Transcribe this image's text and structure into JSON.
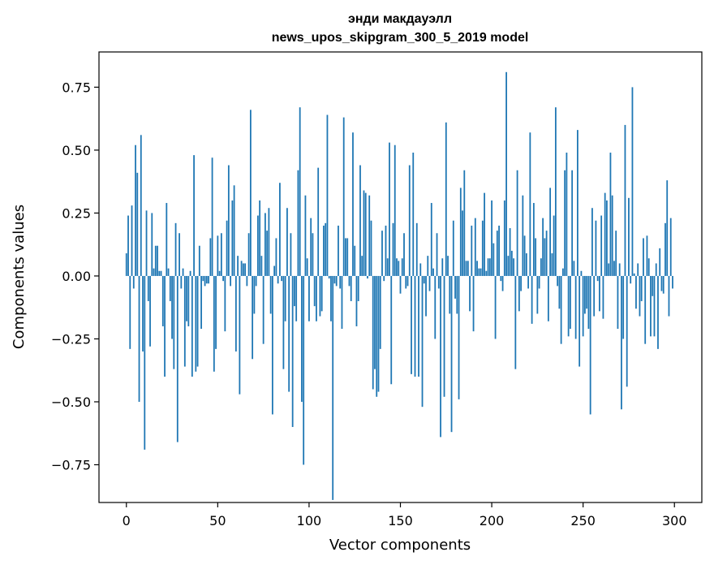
{
  "chart_data": {
    "type": "bar",
    "title_line1": "энди макдауэлл",
    "title_line2": "news_upos_skipgram_300_5_2019 model",
    "xlabel": "Vector components",
    "ylabel": "Components values",
    "xlim": [
      -15,
      315
    ],
    "ylim": [
      -0.9,
      0.89
    ],
    "xticks": [
      0,
      50,
      100,
      150,
      200,
      250,
      300
    ],
    "xtick_labels": [
      "0",
      "50",
      "100",
      "150",
      "200",
      "250",
      "300"
    ],
    "yticks": [
      -0.75,
      -0.5,
      -0.25,
      0,
      0.25,
      0.5,
      0.75
    ],
    "ytick_labels": [
      "−0.75",
      "−0.50",
      "−0.25",
      "0.00",
      "0.25",
      "0.50",
      "0.75"
    ],
    "grid": false,
    "color": "#1f77b4",
    "values": [
      0.09,
      0.24,
      -0.29,
      0.28,
      -0.05,
      0.52,
      0.41,
      -0.5,
      0.56,
      -0.3,
      -0.69,
      0.26,
      -0.1,
      -0.28,
      0.25,
      0.03,
      0.12,
      0.12,
      0.02,
      0.02,
      -0.2,
      -0.4,
      0.29,
      0.03,
      -0.1,
      -0.25,
      -0.37,
      0.21,
      -0.66,
      0.17,
      -0.05,
      0.03,
      -0.36,
      -0.18,
      -0.2,
      0.02,
      -0.4,
      0.48,
      -0.38,
      -0.36,
      0.12,
      -0.21,
      -0.02,
      -0.04,
      -0.03,
      -0.03,
      0.15,
      0.47,
      -0.38,
      -0.29,
      0.16,
      0.02,
      0.17,
      -0.02,
      -0.22,
      0.22,
      0.44,
      -0.04,
      0.3,
      0.36,
      -0.3,
      0.08,
      -0.47,
      0.06,
      0.05,
      0.05,
      -0.04,
      0.17,
      0.66,
      -0.33,
      -0.15,
      -0.04,
      0.24,
      0.3,
      0.08,
      -0.27,
      0.25,
      0.18,
      0.27,
      -0.15,
      -0.55,
      0.04,
      0.15,
      -0.03,
      0.37,
      -0.02,
      -0.37,
      -0.18,
      0.27,
      -0.46,
      0.17,
      -0.6,
      -0.12,
      -0.18,
      0.42,
      0.67,
      -0.5,
      -0.75,
      0.32,
      0.07,
      -0.18,
      0.23,
      0.17,
      -0.12,
      -0.18,
      0.43,
      -0.16,
      -0.14,
      0.2,
      0.21,
      0.64,
      -0.01,
      -0.18,
      -0.89,
      -0.03,
      -0.04,
      0.2,
      -0.05,
      -0.21,
      0.63,
      0.15,
      0.15,
      -0.04,
      -0.1,
      0.57,
      0.12,
      -0.2,
      -0.1,
      0.44,
      0.08,
      0.34,
      0.33,
      -0.01,
      0.32,
      0.22,
      -0.45,
      -0.37,
      -0.48,
      -0.46,
      -0.29,
      0.18,
      -0.02,
      0.2,
      0.07,
      0.53,
      -0.43,
      0.21,
      0.52,
      0.07,
      0.06,
      -0.07,
      0.07,
      0.17,
      -0.05,
      -0.04,
      0.44,
      -0.39,
      0.49,
      -0.4,
      0.21,
      -0.4,
      0.05,
      -0.52,
      -0.03,
      -0.16,
      0.08,
      -0.06,
      0.29,
      0.03,
      -0.25,
      0.17,
      -0.05,
      -0.64,
      0.07,
      -0.48,
      0.61,
      0.08,
      -0.15,
      -0.62,
      0.22,
      -0.09,
      -0.15,
      -0.49,
      0.35,
      0.26,
      0.42,
      0.06,
      0.06,
      -0.14,
      0.2,
      -0.22,
      0.23,
      0.06,
      0.03,
      0.03,
      0.22,
      0.33,
      0.02,
      0.07,
      0.07,
      0.3,
      0.13,
      -0.25,
      0.18,
      0.2,
      -0.02,
      -0.06,
      0.3,
      0.81,
      0.08,
      0.19,
      0.1,
      0.07,
      -0.37,
      0.42,
      -0.14,
      -0.06,
      0.32,
      0.16,
      0.09,
      -0.05,
      0.57,
      -0.19,
      0.29,
      0.15,
      -0.15,
      -0.05,
      0.07,
      0.23,
      0.15,
      0.18,
      -0.18,
      0.35,
      0.09,
      0.24,
      0.67,
      -0.04,
      -0.13,
      -0.27,
      0.03,
      0.42,
      0.49,
      -0.24,
      -0.21,
      0.42,
      0.06,
      -0.25,
      0.58,
      -0.36,
      0.02,
      -0.24,
      -0.15,
      -0.13,
      -0.21,
      -0.55,
      0.27,
      -0.16,
      0.22,
      -0.02,
      -0.14,
      0.24,
      -0.17,
      0.33,
      0.3,
      0.05,
      0.49,
      0.32,
      0.06,
      0.18,
      -0.21,
      0.05,
      -0.53,
      -0.25,
      0.6,
      -0.44,
      0.31,
      -0.03,
      0.75,
      0.01,
      -0.13,
      0.05,
      -0.16,
      -0.1,
      0.15,
      -0.27,
      0.16,
      0.07,
      -0.24,
      -0.08,
      -0.24,
      0.05,
      -0.29,
      0.11,
      -0.06,
      -0.07,
      0.21,
      0.38,
      -0.16,
      0.23,
      -0.05
    ]
  }
}
